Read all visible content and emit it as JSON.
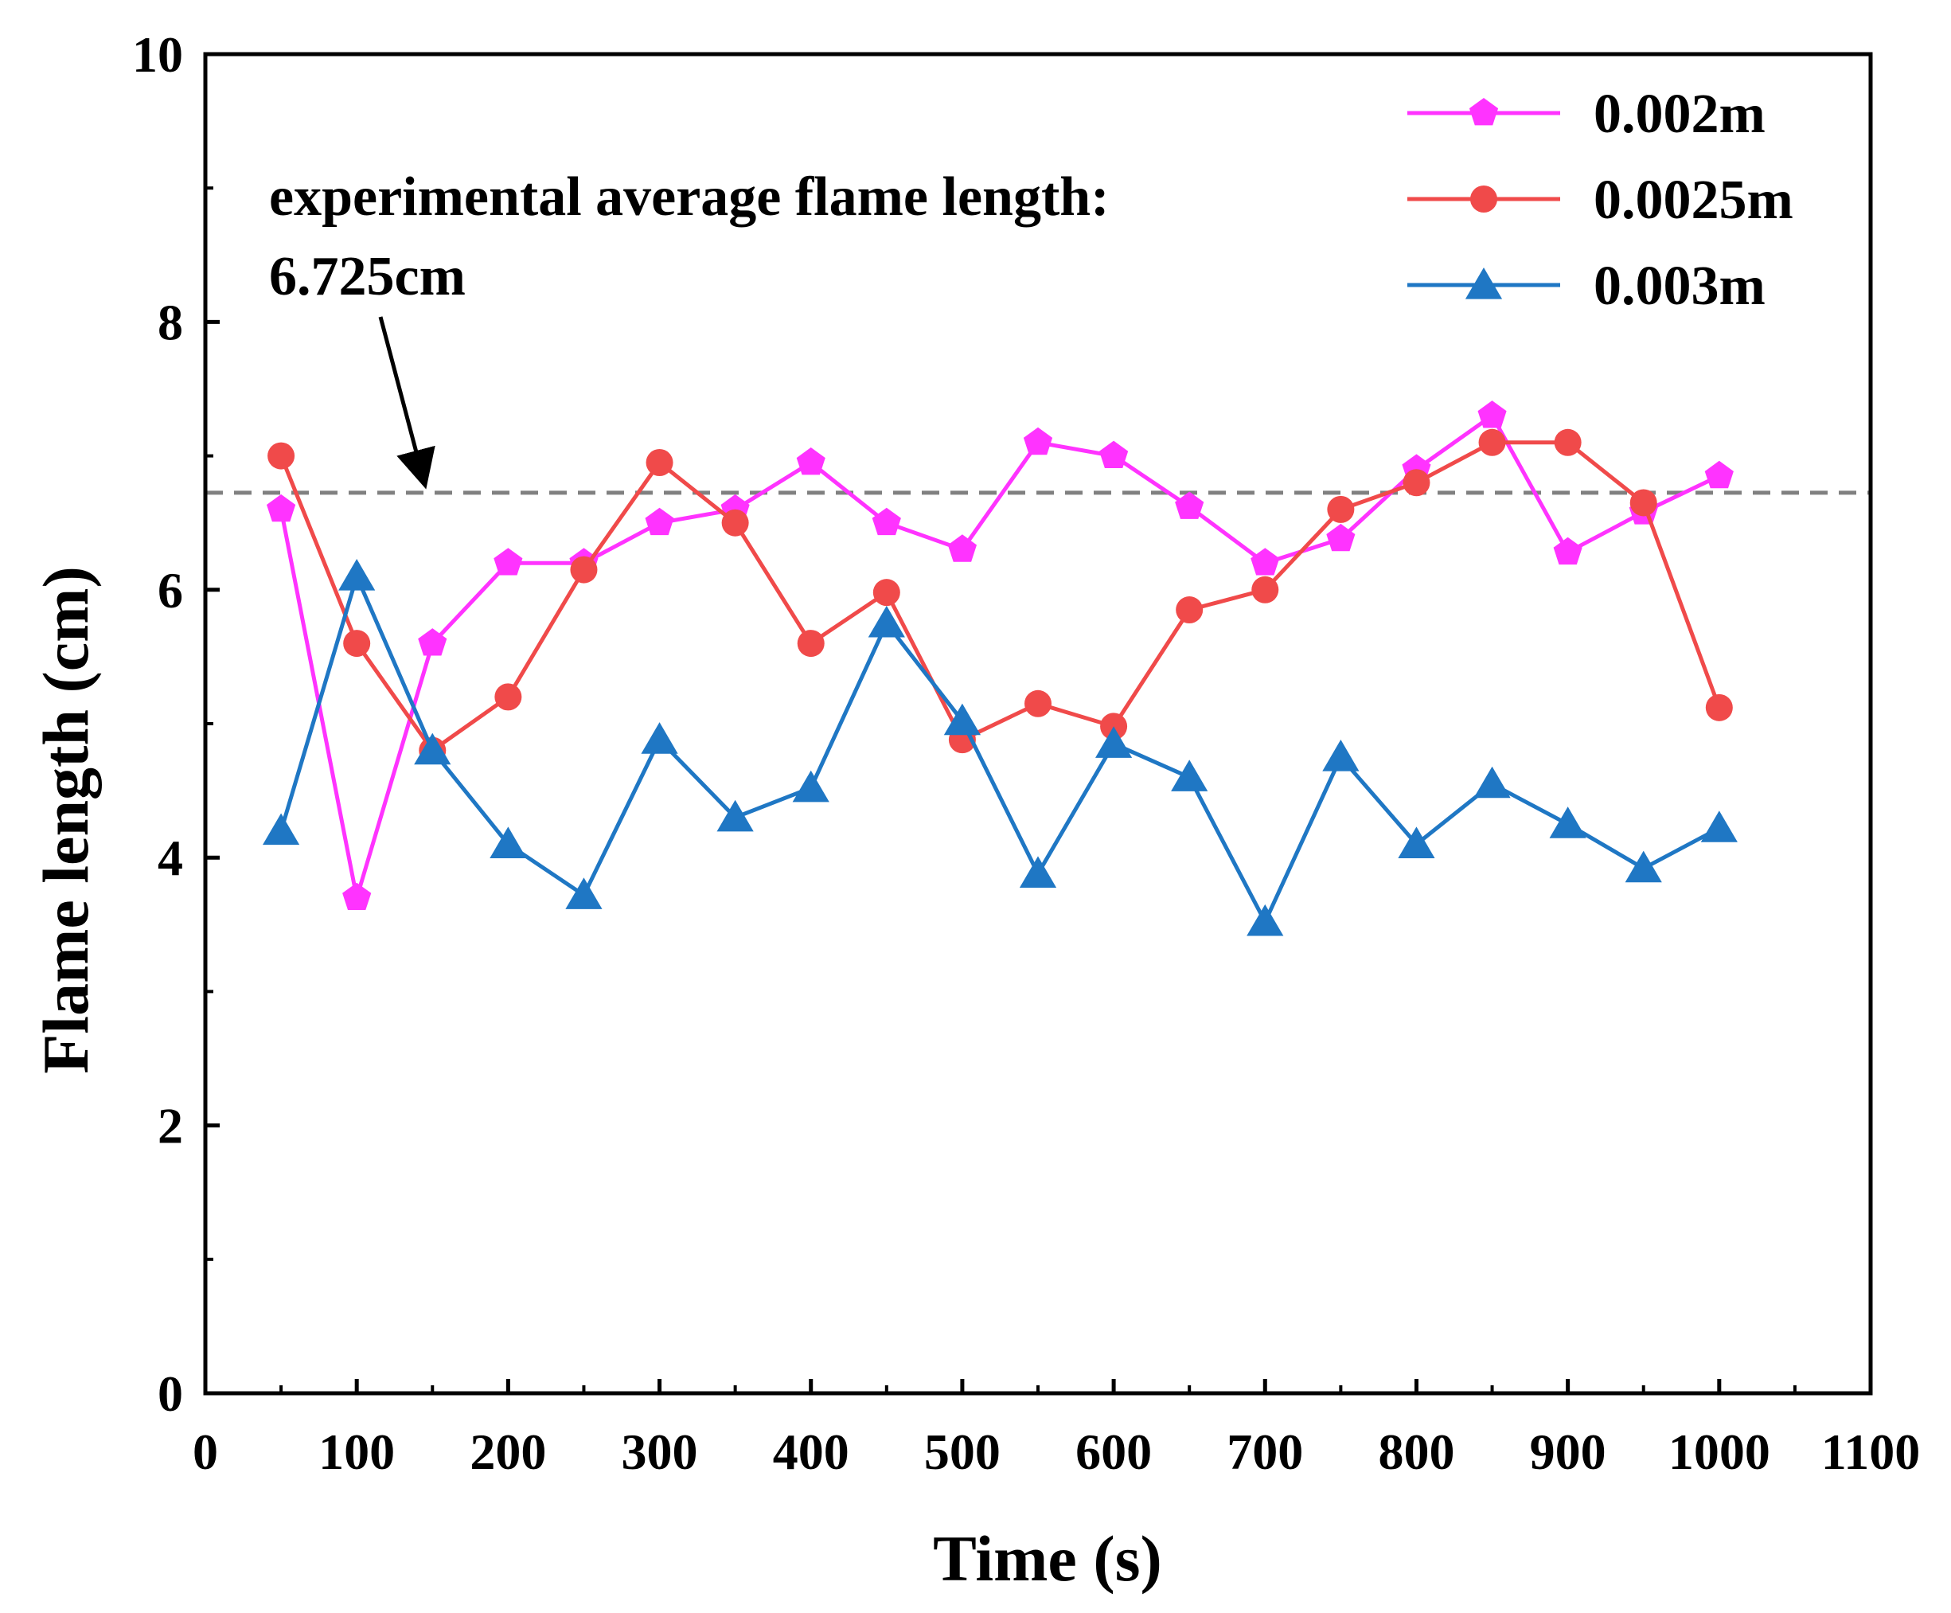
{
  "chart_data": {
    "type": "line",
    "title": "",
    "xlabel": "Time (s)",
    "ylabel": "Flame length (cm)",
    "xlim": [
      0,
      1100
    ],
    "ylim": [
      0,
      10
    ],
    "xticks": [
      0,
      100,
      200,
      300,
      400,
      500,
      600,
      700,
      800,
      900,
      1000,
      1100
    ],
    "yticks": [
      0,
      2,
      4,
      6,
      8,
      10
    ],
    "legend_position": "top-right",
    "reference_line": {
      "y": 6.725,
      "style": "dashed",
      "color": "#808080"
    },
    "annotation": {
      "line1": "experimental average flame length:",
      "line2": "6.725cm",
      "points_to_x": 135,
      "points_to_y": 6.725
    },
    "x": [
      50,
      100,
      150,
      200,
      250,
      300,
      350,
      400,
      450,
      500,
      550,
      600,
      650,
      700,
      750,
      800,
      850,
      900,
      950,
      1000
    ],
    "series": [
      {
        "name": "0.002m",
        "color": "#ff33ff",
        "marker": "pentagon",
        "values": [
          6.6,
          3.7,
          5.6,
          6.2,
          6.2,
          6.5,
          6.6,
          6.95,
          6.5,
          6.3,
          7.1,
          7.0,
          6.62,
          6.2,
          6.38,
          6.9,
          7.3,
          6.28,
          6.58,
          6.85
        ]
      },
      {
        "name": "0.0025m",
        "color": "#f04a4a",
        "marker": "circle",
        "values": [
          7.0,
          5.6,
          4.8,
          5.2,
          6.15,
          6.95,
          6.5,
          5.6,
          5.98,
          4.88,
          5.15,
          4.98,
          5.85,
          6.0,
          6.6,
          6.8,
          7.1,
          7.1,
          6.65,
          5.12
        ]
      },
      {
        "name": "0.003m",
        "color": "#1f77c4",
        "marker": "triangle",
        "values": [
          4.2,
          6.1,
          4.8,
          4.1,
          3.72,
          4.88,
          4.3,
          4.52,
          5.75,
          5.02,
          3.88,
          4.85,
          4.6,
          3.52,
          4.75,
          4.1,
          4.55,
          4.25,
          3.92,
          4.22
        ]
      }
    ]
  }
}
